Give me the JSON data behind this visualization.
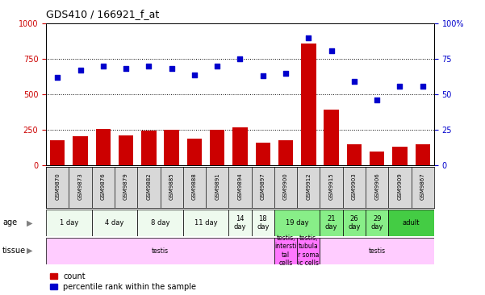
{
  "title": "GDS410 / 166921_f_at",
  "samples": [
    "GSM9870",
    "GSM9873",
    "GSM9876",
    "GSM9879",
    "GSM9882",
    "GSM9885",
    "GSM9888",
    "GSM9891",
    "GSM9894",
    "GSM9897",
    "GSM9900",
    "GSM9912",
    "GSM9915",
    "GSM9903",
    "GSM9906",
    "GSM9909",
    "GSM9867"
  ],
  "counts": [
    175,
    205,
    255,
    210,
    245,
    250,
    185,
    250,
    270,
    160,
    175,
    860,
    390,
    145,
    95,
    130,
    145
  ],
  "percentiles": [
    62,
    67,
    70,
    68,
    70,
    68,
    64,
    70,
    75,
    63,
    65,
    90,
    81,
    59,
    46,
    56,
    56
  ],
  "age_groups": [
    {
      "label": "1 day",
      "start": 0,
      "end": 2,
      "color": "#eefaee"
    },
    {
      "label": "4 day",
      "start": 2,
      "end": 4,
      "color": "#eefaee"
    },
    {
      "label": "8 day",
      "start": 4,
      "end": 6,
      "color": "#eefaee"
    },
    {
      "label": "11 day",
      "start": 6,
      "end": 8,
      "color": "#eefaee"
    },
    {
      "label": "14\nday",
      "start": 8,
      "end": 9,
      "color": "#eefaee"
    },
    {
      "label": "18\nday",
      "start": 9,
      "end": 10,
      "color": "#eefaee"
    },
    {
      "label": "19 day",
      "start": 10,
      "end": 12,
      "color": "#88ee88"
    },
    {
      "label": "21\nday",
      "start": 12,
      "end": 13,
      "color": "#88ee88"
    },
    {
      "label": "26\nday",
      "start": 13,
      "end": 14,
      "color": "#88ee88"
    },
    {
      "label": "29\nday",
      "start": 14,
      "end": 15,
      "color": "#88ee88"
    },
    {
      "label": "adult",
      "start": 15,
      "end": 17,
      "color": "#44cc44"
    }
  ],
  "tissue_groups": [
    {
      "label": "testis",
      "start": 0,
      "end": 10,
      "color": "#ffccff"
    },
    {
      "label": "testis,\nintersti\ntal\ncells",
      "start": 10,
      "end": 11,
      "color": "#ff77ff"
    },
    {
      "label": "testis,\ntubula\nr soma\nic cells",
      "start": 11,
      "end": 12,
      "color": "#ff77ff"
    },
    {
      "label": "testis",
      "start": 12,
      "end": 17,
      "color": "#ffccff"
    }
  ],
  "ylim_left": [
    0,
    1000
  ],
  "ylim_right": [
    0,
    100
  ],
  "yticks_left": [
    0,
    250,
    500,
    750,
    1000
  ],
  "yticks_right": [
    0,
    25,
    50,
    75,
    100
  ],
  "ytick_labels_right": [
    "0",
    "25",
    "50",
    "75",
    "100%"
  ],
  "bar_color": "#cc0000",
  "dot_color": "#0000cc"
}
